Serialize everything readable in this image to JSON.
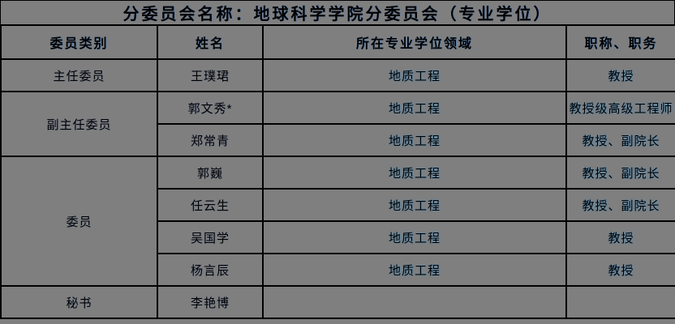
{
  "title": "分委员会名称：地球科学学院分委员会（专业学位）",
  "colors": {
    "background": "#7f7f7f",
    "border": "#000000",
    "text": "#000000"
  },
  "table": {
    "headers": [
      "委员类别",
      "姓名",
      "所在专业学位领域",
      "职称、职务"
    ],
    "groups": [
      {
        "category": "主任委员",
        "members": [
          {
            "name": "王璞珺",
            "field": "地质工程",
            "title": "教授"
          }
        ]
      },
      {
        "category": "副主任委员",
        "members": [
          {
            "name": "郭文秀*",
            "field": "地质工程",
            "title": "教授级高级工程师"
          },
          {
            "name": "郑常青",
            "field": "地质工程",
            "title": "教授、副院长"
          }
        ]
      },
      {
        "category": "委员",
        "members": [
          {
            "name": "郭巍",
            "field": "地质工程",
            "title": "教授、副院长"
          },
          {
            "name": "任云生",
            "field": "地质工程",
            "title": "教授、副院长"
          },
          {
            "name": "吴国学",
            "field": "地质工程",
            "title": "教授"
          },
          {
            "name": "杨言辰",
            "field": "地质工程",
            "title": "教授"
          }
        ]
      },
      {
        "category": "秘书",
        "members": [
          {
            "name": "李艳博",
            "field": "",
            "title": ""
          }
        ]
      }
    ]
  }
}
